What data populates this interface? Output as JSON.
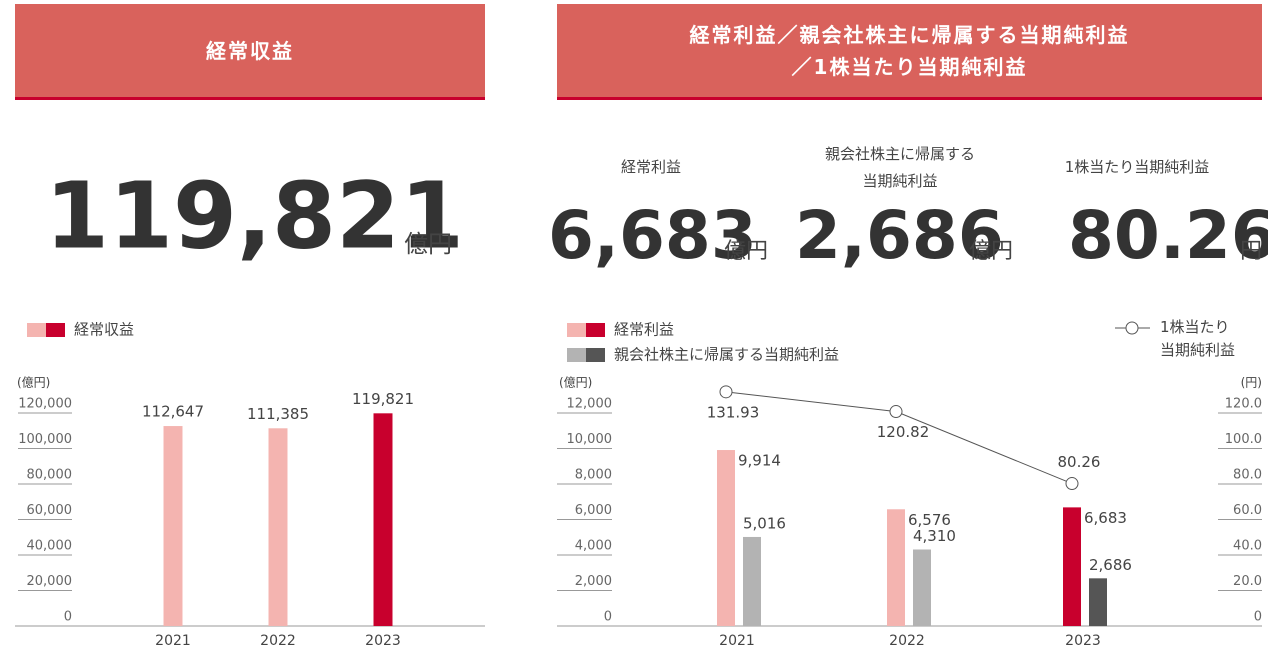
{
  "revenue": {
    "header": "経常収益",
    "kpi": {
      "value": "119,821",
      "unit": "億円"
    }
  },
  "profit": {
    "header_lines": [
      "経常利益／親会社株主に帰属する当期純利益",
      "／1株当たり当期純利益"
    ],
    "kpis": [
      {
        "label": "経常利益",
        "value": "6,683",
        "unit": "億円"
      },
      {
        "label": "親会社株主に帰属する当期純利益",
        "value": "2,686",
        "unit": "億円"
      },
      {
        "label": "1株当たり当期純利益",
        "value": "80.26",
        "unit": "円"
      }
    ]
  },
  "chart_data": [
    {
      "type": "bar",
      "y_unit": "(億円)",
      "categories": [
        "2021",
        "2022",
        "2023"
      ],
      "series": [
        {
          "name": "経常収益",
          "colors": [
            "#f4b4b0",
            "#f4b4b0",
            "#c8002d"
          ],
          "values": [
            112647,
            111385,
            119821
          ],
          "value_labels": [
            "112,647",
            "111,385",
            "119,821"
          ]
        }
      ],
      "ylim": [
        0,
        120000
      ],
      "yticks": [
        0,
        {
          "value": 20000,
          "label": "20,000"
        },
        {
          "value": 40000,
          "label": "40,000"
        },
        {
          "value": 60000,
          "label": "60,000"
        },
        {
          "value": 80000,
          "label": "80,000"
        },
        {
          "value": 100000,
          "label": "100,000"
        },
        {
          "value": 120000,
          "label": "120,000"
        }
      ]
    },
    {
      "type": "bar_line",
      "y_unit": "(億円)",
      "y2_unit": "(円)",
      "categories": [
        "2021",
        "2022",
        "2023"
      ],
      "series": [
        {
          "name": "経常利益",
          "colors": [
            "#f4b4b0",
            "#f4b4b0",
            "#c8002d"
          ],
          "values": [
            9914,
            6576,
            6683
          ],
          "value_labels": [
            "9,914",
            "6,576",
            "6,683"
          ]
        },
        {
          "name": "親会社株主に帰属する当期純利益",
          "colors": [
            "#b3b3b3",
            "#b3b3b3",
            "#555555"
          ],
          "values": [
            5016,
            4310,
            2686
          ],
          "value_labels": [
            "5,016",
            "4,310",
            "2,686"
          ]
        },
        {
          "name": "1株当たり当期純利益",
          "type": "line",
          "axis": "y2",
          "color": "#555555",
          "values": [
            131.93,
            120.82,
            80.26
          ]
        }
      ],
      "ylim": [
        0,
        12000
      ],
      "yticks": [
        0,
        {
          "value": 2000,
          "label": "2,000"
        },
        {
          "value": 4000,
          "label": "4,000"
        },
        {
          "value": 6000,
          "label": "6,000"
        },
        {
          "value": 8000,
          "label": "8,000"
        },
        {
          "value": 10000,
          "label": "10,000"
        },
        {
          "value": 12000,
          "label": "12,000"
        }
      ],
      "y2lim": [
        0,
        120
      ],
      "y2ticks": [
        0,
        {
          "value": 20,
          "label": "20.0"
        },
        {
          "value": 40,
          "label": "40.0"
        },
        {
          "value": 60,
          "label": "60.0"
        },
        {
          "value": 80,
          "label": "80.0"
        },
        {
          "value": 100,
          "label": "100.0"
        },
        {
          "value": 120,
          "label": "120.0"
        }
      ]
    }
  ]
}
